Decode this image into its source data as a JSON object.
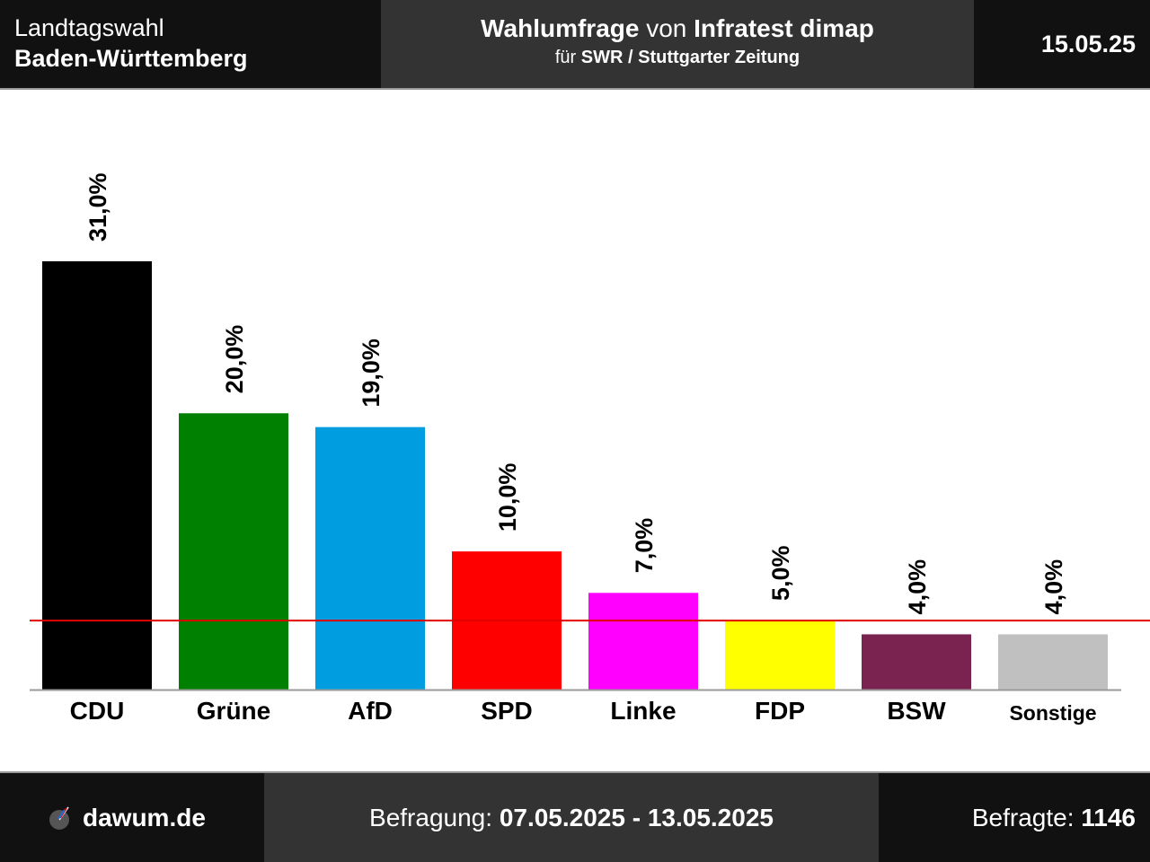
{
  "header": {
    "region_line1": "Landtagswahl",
    "region_line2": "Baden-Württemberg",
    "title_bold1": "Wahlumfrage",
    "title_normal": " von ",
    "title_bold2": "Infratest dimap",
    "subtitle_prefix": "für ",
    "subtitle_bold": "SWR / Stuttgarter Zeitung",
    "date": "15.05.25"
  },
  "footer": {
    "brand": "dawum.de",
    "brand_icon": "dawum-logo-icon",
    "period_label": "Befragung: ",
    "period_value": "07.05.2025 - 13.05.2025",
    "respondents_label": "Befragte: ",
    "respondents_value": "1146"
  },
  "chart_data": {
    "type": "bar",
    "categories": [
      "CDU",
      "Grüne",
      "AfD",
      "SPD",
      "Linke",
      "FDP",
      "BSW",
      "Sonstige"
    ],
    "values": [
      31.0,
      20.0,
      19.0,
      10.0,
      7.0,
      5.0,
      4.0,
      4.0
    ],
    "value_labels": [
      "31,0%",
      "20,0%",
      "19,0%",
      "10,0%",
      "7,0%",
      "5,0%",
      "4,0%",
      "4,0%"
    ],
    "colors": [
      "#000000",
      "#008000",
      "#009ee0",
      "#ff0000",
      "#ff00ff",
      "#ffff00",
      "#7b2350",
      "#c0c0c0"
    ],
    "threshold": 5.0,
    "threshold_color": "#e00000",
    "ylim": [
      0,
      31.0
    ],
    "grid": false,
    "legend": "none"
  }
}
